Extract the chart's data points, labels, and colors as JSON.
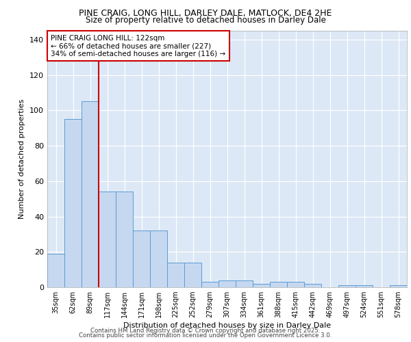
{
  "title1": "PINE CRAIG, LONG HILL, DARLEY DALE, MATLOCK, DE4 2HE",
  "title2": "Size of property relative to detached houses in Darley Dale",
  "xlabel": "Distribution of detached houses by size in Darley Dale",
  "ylabel": "Number of detached properties",
  "categories": [
    "35sqm",
    "62sqm",
    "89sqm",
    "117sqm",
    "144sqm",
    "171sqm",
    "198sqm",
    "225sqm",
    "252sqm",
    "279sqm",
    "307sqm",
    "334sqm",
    "361sqm",
    "388sqm",
    "415sqm",
    "442sqm",
    "469sqm",
    "497sqm",
    "524sqm",
    "551sqm",
    "578sqm"
  ],
  "values": [
    19,
    95,
    105,
    54,
    54,
    32,
    32,
    14,
    14,
    3,
    4,
    4,
    2,
    3,
    3,
    2,
    0,
    1,
    1,
    0,
    1
  ],
  "bar_color": "#c5d8f0",
  "bar_edge_color": "#5b9bd5",
  "vline_x": 2.5,
  "vline_color": "#cc0000",
  "annotation_text": "PINE CRAIG LONG HILL: 122sqm\n← 66% of detached houses are smaller (227)\n34% of semi-detached houses are larger (116) →",
  "annotation_box_color": "#ffffff",
  "annotation_box_edge": "#cc0000",
  "ylim": [
    0,
    145
  ],
  "yticks": [
    0,
    20,
    40,
    60,
    80,
    100,
    120,
    140
  ],
  "plot_bg_color": "#dce8f5",
  "fig_bg_color": "#ffffff",
  "footer1": "Contains HM Land Registry data © Crown copyright and database right 2025.",
  "footer2": "Contains public sector information licensed under the Open Government Licence 3.0."
}
